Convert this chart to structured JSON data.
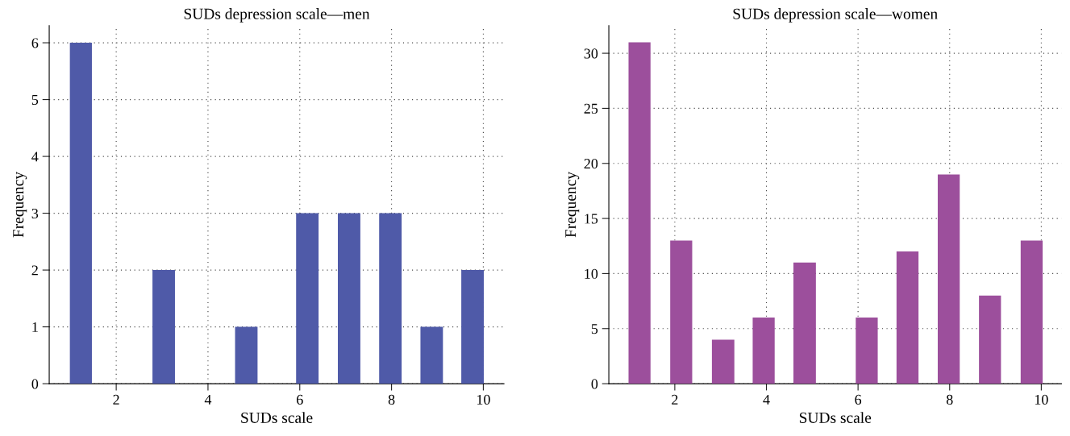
{
  "chart_data": [
    {
      "type": "histogram",
      "title": "SUDs depression scale—men",
      "xlabel": "SUDs scale",
      "ylabel": "Frequency",
      "color": "#4f5aa8",
      "bins": [
        0.99,
        1.47,
        2.79,
        3.28,
        4.59,
        5.08,
        5.92,
        6.41,
        6.83,
        7.32,
        7.73,
        8.22,
        8.63,
        9.12,
        9.52,
        10.01
      ],
      "values": [
        6,
        0,
        2,
        0,
        1,
        0,
        3,
        0,
        3,
        0,
        3,
        0,
        1,
        0,
        2
      ],
      "xlim": [
        0.54,
        10.45
      ],
      "ylim": [
        0,
        6.3
      ],
      "xticks": [
        2,
        4,
        6,
        8,
        10
      ],
      "yticks": [
        0,
        1,
        2,
        3,
        4,
        5,
        6
      ],
      "grid": true
    },
    {
      "type": "histogram",
      "title": "SUDs depression scale—women",
      "xlabel": "SUDs scale",
      "ylabel": "Frequency",
      "color": "#9c4f9c",
      "bins": [
        0.99,
        1.47,
        1.9,
        2.38,
        2.81,
        3.3,
        3.7,
        4.18,
        4.59,
        5.08,
        5.95,
        6.43,
        6.84,
        7.32,
        7.74,
        8.22,
        8.64,
        9.12,
        9.55,
        10.03
      ],
      "values": [
        31,
        0,
        13,
        0,
        4,
        0,
        6,
        0,
        11,
        0,
        6,
        0,
        12,
        0,
        19,
        0,
        8,
        0,
        13
      ],
      "xlim": [
        0.56,
        10.44
      ],
      "ylim": [
        0,
        32.5
      ],
      "xticks": [
        2,
        4,
        6,
        8,
        10
      ],
      "yticks": [
        0,
        5,
        10,
        15,
        20,
        25,
        30
      ],
      "grid": true
    }
  ]
}
